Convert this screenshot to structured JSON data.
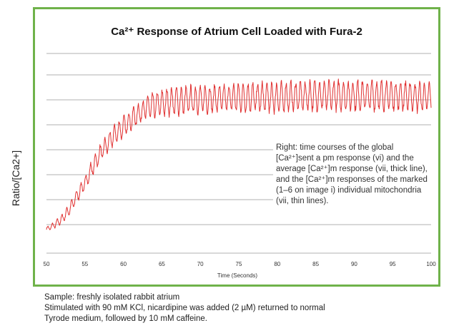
{
  "caption": [
    "Sample: freshly isolated rabbit atrium",
    "Stimulated with 90 mM KCl, nicardipine was added (2 µM) returned to normal",
    "Tyrode medium, followed by 10 mM caffeine."
  ],
  "annotation": "Right: time courses of the global [Ca²⁺]sent a pm response (vi) and the average [Ca²⁺]m response (vii, thick line), and the [Ca²⁺]m responses of the marked (1–6 on image i) individual mitochondria (vii, thin lines).",
  "colors": {
    "frame": "#6fb24a",
    "line": "#e03030",
    "grid": "#999999"
  },
  "chart_data": {
    "type": "line",
    "title": "Ca²⁺ Response of Atrium Cell Loaded with Fura-2",
    "xlabel": "Time (Seconds)",
    "ylabel": "Ratio/[Ca2+]",
    "xlim": [
      50,
      100
    ],
    "x_ticks": [
      "50",
      "55",
      "60",
      "65",
      "70",
      "75",
      "80",
      "85",
      "90",
      "95",
      "100"
    ],
    "grid": "horizontal",
    "series": [
      {
        "envelope": {
          "x": [
            50,
            51,
            52,
            53,
            54,
            55,
            56,
            57,
            58,
            59,
            60,
            61,
            62,
            63,
            64,
            65,
            66,
            70,
            75,
            80,
            85,
            90,
            95,
            100
          ],
          "mean": [
            0.12,
            0.14,
            0.17,
            0.22,
            0.29,
            0.35,
            0.43,
            0.5,
            0.55,
            0.6,
            0.63,
            0.67,
            0.7,
            0.73,
            0.74,
            0.75,
            0.76,
            0.77,
            0.78,
            0.78,
            0.79,
            0.79,
            0.79,
            0.78
          ],
          "amplitude": [
            0.01,
            0.015,
            0.02,
            0.025,
            0.03,
            0.035,
            0.04,
            0.04,
            0.045,
            0.045,
            0.05,
            0.05,
            0.05,
            0.055,
            0.06,
            0.06,
            0.065,
            0.065,
            0.065,
            0.07,
            0.07,
            0.07,
            0.07,
            0.07
          ]
        },
        "oscillation_period_s": 0.62
      }
    ]
  }
}
